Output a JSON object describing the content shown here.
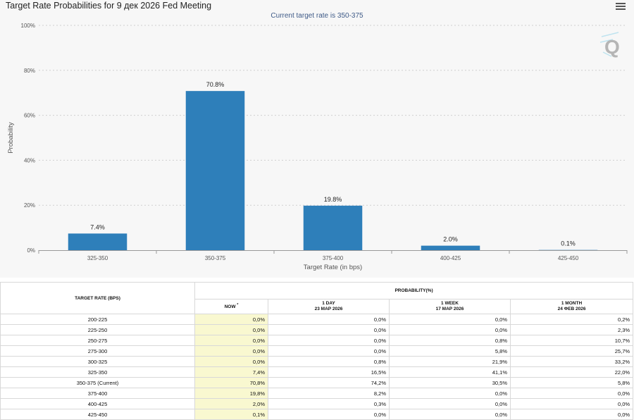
{
  "chart_title": "Target Rate Probabilities for 9 дек 2026 Fed Meeting",
  "chart_subtitle": "Current target rate is 350-375",
  "colors": {
    "bar": "#2e7fba",
    "grid": "#cfcfcf",
    "axis": "#999999"
  },
  "chart_data": {
    "type": "bar",
    "title": "Target Rate Probabilities for 9 дек 2026 Fed Meeting",
    "subtitle": "Current target rate is 350-375",
    "xlabel": "Target Rate (in bps)",
    "ylabel": "Probability",
    "categories": [
      "325-350",
      "350-375",
      "375-400",
      "400-425",
      "425-450"
    ],
    "values": [
      7.4,
      70.8,
      19.8,
      2.0,
      0.1
    ],
    "data_labels": [
      "7.4%",
      "70.8%",
      "19.8%",
      "2.0%",
      "0.1%"
    ],
    "ylim": [
      0,
      100
    ],
    "yticks": [
      0,
      20,
      40,
      60,
      80,
      100
    ],
    "ytick_labels": [
      "0%",
      "20%",
      "40%",
      "60%",
      "80%",
      "100%"
    ],
    "grid": true
  },
  "table": {
    "rate_header": "TARGET RATE (BPS)",
    "prob_header": "PROBABILITY(%)",
    "columns": [
      {
        "label": "NOW",
        "marker": "*",
        "date": ""
      },
      {
        "label": "1 DAY",
        "marker": "",
        "date": "23 МАР 2026"
      },
      {
        "label": "1 WEEK",
        "marker": "",
        "date": "17 МАР 2026"
      },
      {
        "label": "1 MONTH",
        "marker": "",
        "date": "24 ФЕВ 2026"
      }
    ],
    "rows": [
      {
        "rate": "200-225",
        "values": [
          "0,0%",
          "0,0%",
          "0,0%",
          "0,2%"
        ]
      },
      {
        "rate": "225-250",
        "values": [
          "0,0%",
          "0,0%",
          "0,0%",
          "2,3%"
        ]
      },
      {
        "rate": "250-275",
        "values": [
          "0,0%",
          "0,0%",
          "0,8%",
          "10,7%"
        ]
      },
      {
        "rate": "275-300",
        "values": [
          "0,0%",
          "0,0%",
          "5,8%",
          "25,7%"
        ]
      },
      {
        "rate": "300-325",
        "values": [
          "0,0%",
          "0,8%",
          "21,9%",
          "33,2%"
        ]
      },
      {
        "rate": "325-350",
        "values": [
          "7,4%",
          "16,5%",
          "41,1%",
          "22,0%"
        ]
      },
      {
        "rate": "350-375 (Current)",
        "values": [
          "70,8%",
          "74,2%",
          "30,5%",
          "5,8%"
        ]
      },
      {
        "rate": "375-400",
        "values": [
          "19,8%",
          "8,2%",
          "0,0%",
          "0,0%"
        ]
      },
      {
        "rate": "400-425",
        "values": [
          "2,0%",
          "0,3%",
          "0,0%",
          "0,0%"
        ]
      },
      {
        "rate": "425-450",
        "values": [
          "0,1%",
          "0,0%",
          "0,0%",
          "0,0%"
        ]
      }
    ]
  }
}
